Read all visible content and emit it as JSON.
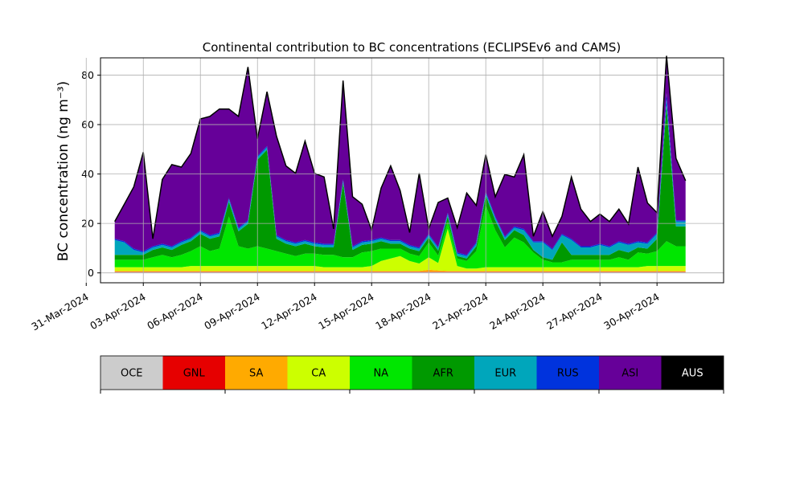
{
  "chart_data": {
    "type": "area",
    "title": "Continental contribution to BC concentrations (ECLIPSEv6 and CAMS)",
    "ylabel": "BC concentration (ng m⁻³)",
    "xlabel": "",
    "ylim": [
      -4,
      87
    ],
    "xlim_days": [
      "2024-03-31T18:00",
      "2024-05-03T12:00"
    ],
    "yticks": [
      0,
      20,
      40,
      60,
      80
    ],
    "xticks": [
      "31-Mar-2024",
      "03-Apr-2024",
      "06-Apr-2024",
      "09-Apr-2024",
      "12-Apr-2024",
      "15-Apr-2024",
      "18-Apr-2024",
      "21-Apr-2024",
      "24-Apr-2024",
      "27-Apr-2024",
      "30-Apr-2024"
    ],
    "grid": true,
    "stacked": true,
    "x_start": "2024-04-01T12:00",
    "x_end": "2024-05-01T12:00",
    "total_line_color": "#000000",
    "series": [
      {
        "name": "OCE",
        "color": "#cccccc",
        "values": [
          0.3,
          0.3,
          0.3,
          0.3,
          0.3,
          0.3,
          0.3,
          0.3,
          0.3,
          0.3,
          0.3,
          0.3,
          0.3,
          0.3,
          0.3,
          0.3,
          0.3,
          0.3,
          0.3,
          0.3,
          0.3,
          0.3,
          0.3,
          0.3,
          0.3,
          0.3,
          0.3,
          0.3,
          0.3,
          0.3,
          0.3,
          0.3,
          0.3,
          0.3,
          0.3,
          0.3,
          0.3,
          0.3,
          0.3,
          0.3,
          0.3,
          0.3,
          0.3,
          0.3,
          0.3,
          0.3,
          0.3,
          0.3,
          0.3,
          0.3,
          0.3,
          0.3,
          0.3,
          0.3,
          0.3,
          0.3,
          0.3,
          0.3,
          0.3,
          0.3,
          0.3
        ]
      },
      {
        "name": "GNL",
        "color": "#e60000",
        "values": [
          0.2,
          0.2,
          0.2,
          0.2,
          0.2,
          0.2,
          0.2,
          0.2,
          0.2,
          0.2,
          0.2,
          0.2,
          0.2,
          0.2,
          0.2,
          0.2,
          0.2,
          0.2,
          0.2,
          0.2,
          0.2,
          0.2,
          0.2,
          0.2,
          0.2,
          0.2,
          0.2,
          0.2,
          0.2,
          0.2,
          0.2,
          0.2,
          0.2,
          0.2,
          0.2,
          0.2,
          0.2,
          0.2,
          0.2,
          0.2,
          0.2,
          0.2,
          0.2,
          0.2,
          0.2,
          0.2,
          0.2,
          0.2,
          0.2,
          0.2,
          0.2,
          0.2,
          0.2,
          0.2,
          0.2,
          0.2,
          0.2,
          0.2,
          0.2,
          0.2,
          0.2
        ]
      },
      {
        "name": "SA",
        "color": "#ffaa00",
        "values": [
          0.3,
          0.3,
          0.3,
          0.3,
          0.3,
          0.3,
          0.3,
          0.3,
          0.3,
          0.3,
          0.3,
          0.3,
          0.3,
          0.3,
          0.3,
          0.3,
          0.3,
          0.3,
          0.3,
          0.3,
          0.3,
          0.3,
          0.3,
          0.3,
          0.3,
          0.3,
          0.3,
          0.3,
          0.3,
          0.3,
          0.3,
          0.3,
          0.3,
          0.8,
          0.5,
          0.3,
          0.3,
          0.3,
          0.3,
          0.3,
          0.3,
          0.3,
          0.3,
          0.3,
          0.3,
          0.3,
          0.3,
          0.3,
          0.3,
          0.3,
          0.3,
          0.3,
          0.3,
          0.3,
          0.3,
          0.3,
          0.3,
          0.3,
          0.3,
          0.3,
          0.3
        ]
      },
      {
        "name": "CA",
        "color": "#ccff00",
        "values": [
          1.5,
          1.5,
          1.5,
          1.5,
          1.5,
          1.5,
          1.5,
          1.5,
          2,
          2,
          2,
          2,
          2,
          2,
          2,
          2,
          2,
          2,
          2,
          2,
          2,
          2,
          1.5,
          1.5,
          1.5,
          1.5,
          1.5,
          2,
          4,
          5,
          6,
          4,
          3,
          5,
          3,
          17,
          2,
          1,
          1,
          1.5,
          1.5,
          1.5,
          1.5,
          1.5,
          1.5,
          1.5,
          1.5,
          1.5,
          1.5,
          1.5,
          1.5,
          1.5,
          1.5,
          1.5,
          1.5,
          1.5,
          2,
          2,
          2,
          2,
          2
        ]
      },
      {
        "name": "NA",
        "color": "#00e600",
        "values": [
          3,
          3,
          3,
          3,
          4,
          5,
          4,
          5,
          6,
          8,
          6,
          7,
          20,
          8,
          7,
          8,
          7,
          6,
          5,
          4,
          5,
          5,
          5,
          5,
          4,
          4,
          6,
          6,
          5,
          4,
          3,
          3,
          3,
          6,
          3,
          3,
          3,
          3,
          7,
          25,
          15,
          8,
          12,
          10,
          6,
          3,
          2,
          2,
          3,
          3,
          3,
          3,
          3,
          4,
          3,
          6,
          5,
          6,
          10,
          8,
          8
        ]
      },
      {
        "name": "AFR",
        "color": "#009900",
        "values": [
          2,
          2,
          2,
          2,
          3,
          3,
          3,
          4,
          4,
          5,
          5,
          5,
          6,
          6,
          10,
          35,
          40,
          5,
          4,
          4,
          4,
          3,
          3,
          3,
          30,
          3,
          3,
          3,
          3,
          2,
          2,
          2,
          2,
          2,
          2,
          2,
          1,
          1,
          2,
          4,
          4,
          3,
          3,
          3,
          1,
          1,
          1,
          8,
          2,
          2,
          2,
          2,
          2,
          3,
          3,
          2,
          2,
          5,
          55,
          8,
          8
        ]
      },
      {
        "name": "EUR",
        "color": "#00a6bb",
        "values": [
          6,
          5,
          2,
          1,
          1,
          1,
          1,
          1,
          1,
          1,
          1,
          1,
          1,
          1,
          1,
          1,
          1,
          1,
          1,
          1,
          1,
          1,
          1,
          1,
          1,
          1,
          1,
          1,
          1,
          1,
          1,
          1,
          1,
          1,
          1,
          1,
          1,
          1,
          1,
          1,
          1,
          1,
          1,
          2,
          3,
          6,
          4,
          3,
          6,
          3,
          3,
          4,
          3,
          3,
          3,
          2,
          2,
          2,
          2,
          2,
          2
        ]
      },
      {
        "name": "RUS",
        "color": "#0033dd",
        "values": [
          0.5,
          0.5,
          0.5,
          0.5,
          0.5,
          0.5,
          0.5,
          0.5,
          0.5,
          0.5,
          0.5,
          0.5,
          0.5,
          0.5,
          0.5,
          0.5,
          0.5,
          0.5,
          0.5,
          0.5,
          0.5,
          0.5,
          0.5,
          0.5,
          0.5,
          0.5,
          0.5,
          0.5,
          0.5,
          0.5,
          0.5,
          0.5,
          0.5,
          0.5,
          0.5,
          0.5,
          0.5,
          0.5,
          0.5,
          0.5,
          0.5,
          0.5,
          0.5,
          0.5,
          0.5,
          0.5,
          0.5,
          0.5,
          0.5,
          0.5,
          0.5,
          0.5,
          0.5,
          0.5,
          0.5,
          0.5,
          0.5,
          0.5,
          3,
          0.5,
          0.5
        ]
      },
      {
        "name": "ASI",
        "color": "#660099",
        "values": [
          7,
          15,
          25,
          40,
          3,
          26,
          33,
          30,
          34,
          45,
          48,
          50,
          36,
          45,
          62,
          7,
          22,
          40,
          30,
          28,
          40,
          28,
          27,
          6,
          40,
          20,
          15,
          4,
          20,
          30,
          20,
          5,
          30,
          2,
          18,
          6,
          10,
          25,
          15,
          15,
          8,
          25,
          20,
          30,
          2,
          12,
          5,
          7,
          25,
          15,
          10,
          12,
          10,
          13,
          8,
          30,
          16,
          8,
          15,
          25,
          16
        ]
      },
      {
        "name": "AUS",
        "color": "#000000",
        "values": [
          0,
          0,
          0,
          0,
          0,
          0,
          0,
          0,
          0,
          0,
          0,
          0,
          0,
          0,
          0,
          0,
          0,
          0,
          0,
          0,
          0,
          0,
          0,
          0,
          0,
          0,
          0,
          0,
          0,
          0,
          0,
          0,
          0,
          0,
          0,
          0,
          0,
          0,
          0,
          0,
          0,
          0,
          0,
          0,
          0,
          0,
          0,
          0,
          0,
          0,
          0,
          0,
          0,
          0,
          0,
          0,
          0,
          0,
          0,
          0,
          0
        ]
      }
    ]
  },
  "legend_bar": {
    "labels": [
      "OCE",
      "GNL",
      "SA",
      "CA",
      "NA",
      "AFR",
      "EUR",
      "RUS",
      "ASI",
      "AUS"
    ],
    "colors": [
      "#cccccc",
      "#e60000",
      "#ffaa00",
      "#ccff00",
      "#00e600",
      "#009900",
      "#00a6bb",
      "#0033dd",
      "#660099",
      "#000000"
    ],
    "text_colors": [
      "#000000",
      "#000000",
      "#000000",
      "#000000",
      "#000000",
      "#000000",
      "#000000",
      "#000000",
      "#000000",
      "#ffffff"
    ]
  }
}
